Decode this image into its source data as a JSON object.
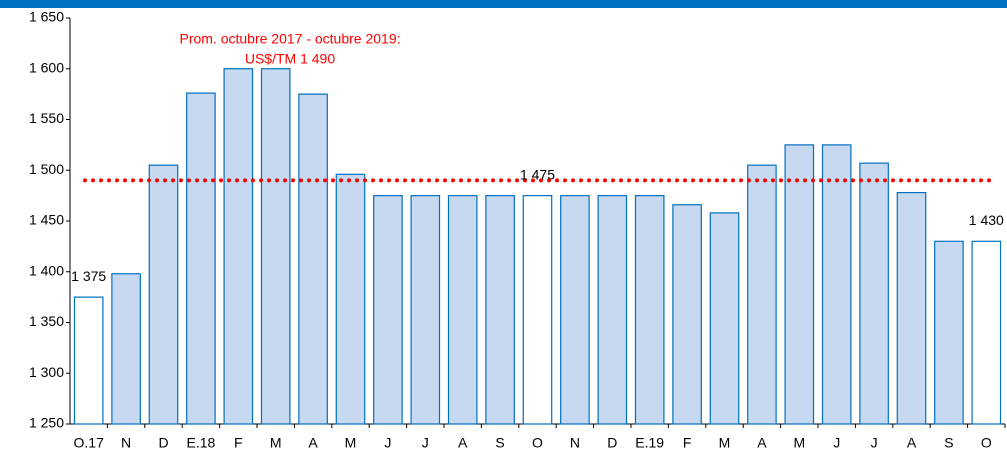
{
  "chart_data": {
    "type": "bar",
    "categories": [
      "O.17",
      "N",
      "D",
      "E.18",
      "F",
      "M",
      "A",
      "M",
      "J",
      "J",
      "A",
      "S",
      "O",
      "N",
      "D",
      "E.19",
      "F",
      "M",
      "A",
      "M",
      "J",
      "J",
      "A",
      "S",
      "O"
    ],
    "values": [
      1375,
      1398,
      1505,
      1576,
      1600,
      1600,
      1575,
      1496,
      1475,
      1475,
      1475,
      1475,
      1475,
      1475,
      1475,
      1475,
      1466,
      1458,
      1505,
      1525,
      1525,
      1507,
      1478,
      1430,
      1430
    ],
    "value_labels": [
      "1 375",
      null,
      null,
      null,
      null,
      null,
      null,
      null,
      null,
      null,
      null,
      null,
      "1 475",
      null,
      null,
      null,
      null,
      null,
      null,
      null,
      null,
      null,
      null,
      null,
      "1 430"
    ],
    "colors": [
      "#ffffff",
      "#c6d9f1",
      "#c6d9f1",
      "#c6d9f1",
      "#c6d9f1",
      "#c6d9f1",
      "#c6d9f1",
      "#c6d9f1",
      "#c6d9f1",
      "#c6d9f1",
      "#c6d9f1",
      "#c6d9f1",
      "#ffffff",
      "#c6d9f1",
      "#c6d9f1",
      "#c6d9f1",
      "#c6d9f1",
      "#c6d9f1",
      "#c6d9f1",
      "#c6d9f1",
      "#c6d9f1",
      "#c6d9f1",
      "#c6d9f1",
      "#c6d9f1",
      "#ffffff"
    ],
    "edge_color": "#0070c0",
    "ylim": [
      1250,
      1650
    ],
    "yticks": [
      {
        "value": 1250,
        "label": "1 250"
      },
      {
        "value": 1300,
        "label": "1 300"
      },
      {
        "value": 1350,
        "label": "1 350"
      },
      {
        "value": 1400,
        "label": "1 400"
      },
      {
        "value": 1450,
        "label": "1 450"
      },
      {
        "value": 1500,
        "label": "1 500"
      },
      {
        "value": 1550,
        "label": "1 550"
      },
      {
        "value": 1600,
        "label": "1 600"
      },
      {
        "value": 1650,
        "label": "1 650"
      }
    ],
    "average": {
      "value": 1490,
      "color": "#ff0000",
      "annotation": [
        "Prom.  octubre 2017 - octubre 2019:",
        "US$/TM 1 490"
      ]
    }
  }
}
